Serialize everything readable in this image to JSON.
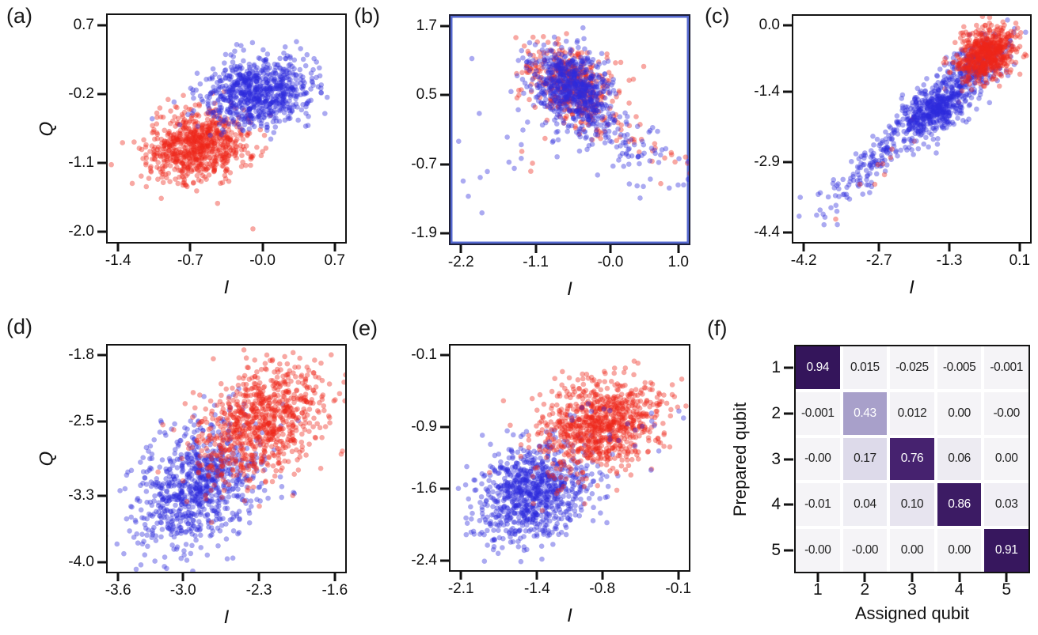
{
  "panels": {
    "a": {
      "label": "(a)",
      "ylabel": "Q",
      "xlabel": "I",
      "yticks": [
        "0.7",
        "-0.2",
        "-1.1",
        "-2.0"
      ],
      "xticks": [
        "-1.4",
        "-0.7",
        "-0.0",
        "0.7"
      ]
    },
    "b": {
      "label": "(b)",
      "xlabel": "I",
      "yticks": [
        "1.7",
        "0.5",
        "-0.7",
        "-1.9"
      ],
      "xticks": [
        "-2.2",
        "-1.1",
        "-0.0",
        "1.0"
      ]
    },
    "c": {
      "label": "(c)",
      "xlabel": "I",
      "yticks": [
        "0.0",
        "-1.4",
        "-2.9",
        "-4.4"
      ],
      "xticks": [
        "-4.2",
        "-2.7",
        "-1.3",
        "0.1"
      ]
    },
    "d": {
      "label": "(d)",
      "ylabel": "Q",
      "xlabel": "I",
      "yticks": [
        "-1.8",
        "-2.5",
        "-3.3",
        "-4.0"
      ],
      "xticks": [
        "-3.6",
        "-3.0",
        "-2.3",
        "-1.6"
      ]
    },
    "e": {
      "label": "(e)",
      "xlabel": "I",
      "yticks": [
        "-0.1",
        "-0.9",
        "-1.6",
        "-2.4"
      ],
      "xticks": [
        "-2.1",
        "-1.4",
        "-0.8",
        "-0.1"
      ]
    },
    "f": {
      "label": "(f)",
      "ylabel": "Prepared qubit",
      "xlabel": "Assigned qubit",
      "yticks": [
        "1",
        "2",
        "3",
        "4",
        "5"
      ],
      "xticks": [
        "1",
        "2",
        "3",
        "4",
        "5"
      ]
    }
  },
  "colors": {
    "point_red": "#ee2618",
    "point_blue": "#2d2bdb",
    "axis_color": "#121212",
    "panel_b_frame": "#5468cf"
  },
  "chart_data": [
    {
      "id": "a",
      "type": "scatter",
      "xlabel": "I",
      "ylabel": "Q",
      "xtick_values": [
        -1.4,
        -0.7,
        0.0,
        0.7
      ],
      "ytick_values": [
        0.7,
        -0.2,
        -1.1,
        -2.0
      ],
      "xlim": [
        -1.517,
        0.817
      ],
      "ylim": [
        -2.15,
        0.85
      ],
      "point_radius": 3.3,
      "alpha": 0.4,
      "seed": 11,
      "series": [
        {
          "name": "red-cluster",
          "color": "#ee2618",
          "n": 760,
          "cx": -0.63,
          "cy": -0.88,
          "sdx": 0.26,
          "sdy": 0.23,
          "corr": 0.12
        },
        {
          "name": "red-outlier",
          "color": "#ee2618",
          "n": 1,
          "cx": -0.08,
          "cy": -1.98,
          "sdx": 0.01,
          "sdy": 0.01,
          "corr": 0
        },
        {
          "name": "blue-cluster",
          "color": "#2d2bdb",
          "n": 760,
          "cx": -0.05,
          "cy": -0.18,
          "sdx": 0.27,
          "sdy": 0.24,
          "corr": 0.15
        }
      ]
    },
    {
      "id": "b",
      "type": "scatter",
      "xlabel": "I",
      "xtick_values": [
        -2.2,
        -1.1,
        0.0,
        1.0
      ],
      "ytick_values": [
        1.7,
        0.5,
        -0.7,
        -1.9
      ],
      "xlim": [
        -2.378,
        1.178
      ],
      "ylim": [
        -2.1,
        1.9
      ],
      "point_radius": 3.3,
      "alpha": 0.4,
      "seed": 22,
      "series": [
        {
          "name": "red-tail",
          "color": "#ee2618",
          "n": 60,
          "cx": 0.1,
          "cy": -0.15,
          "sdx": 0.6,
          "sdy": 0.42,
          "corr": -0.8
        },
        {
          "name": "blue-tail",
          "color": "#2d2bdb",
          "n": 130,
          "cx": 0.05,
          "cy": -0.25,
          "sdx": 0.62,
          "sdy": 0.45,
          "corr": -0.78
        },
        {
          "name": "blue-outliers",
          "color": "#2d2bdb",
          "n": 14,
          "cx": -1.45,
          "cy": -0.85,
          "sdx": 0.45,
          "sdy": 0.5,
          "corr": 0
        },
        {
          "name": "red-outliers",
          "color": "#ee2618",
          "n": 4,
          "cx": -1.6,
          "cy": -0.55,
          "sdx": 0.45,
          "sdy": 0.4,
          "corr": 0
        },
        {
          "name": "red-core",
          "color": "#ee2618",
          "n": 430,
          "cx": -0.6,
          "cy": 0.72,
          "sdx": 0.3,
          "sdy": 0.32,
          "corr": -0.25
        },
        {
          "name": "blue-core",
          "color": "#2d2bdb",
          "n": 640,
          "cx": -0.55,
          "cy": 0.66,
          "sdx": 0.3,
          "sdy": 0.34,
          "corr": -0.3
        }
      ]
    },
    {
      "id": "c",
      "type": "scatter",
      "xlabel": "I",
      "xtick_values": [
        -4.2,
        -2.7,
        -1.3,
        0.1
      ],
      "ytick_values": [
        0.0,
        -1.4,
        -2.9,
        -4.4
      ],
      "xlim": [
        -4.439,
        0.339
      ],
      "ylim": [
        -4.644,
        0.244
      ],
      "point_radius": 3.3,
      "alpha": 0.4,
      "seed": 33,
      "series": [
        {
          "name": "blue-tail",
          "color": "#2d2bdb",
          "n": 150,
          "cx": -2.9,
          "cy": -3.0,
          "sdx": 0.62,
          "sdy": 0.6,
          "corr": 0.93
        },
        {
          "name": "red-strays",
          "color": "#ee2618",
          "n": 14,
          "cx": -2.5,
          "cy": -2.6,
          "sdx": 0.75,
          "sdy": 0.75,
          "corr": 0.92
        },
        {
          "name": "blue-core",
          "color": "#2d2bdb",
          "n": 520,
          "cx": -1.6,
          "cy": -1.78,
          "sdx": 0.34,
          "sdy": 0.3,
          "corr": 0.5
        },
        {
          "name": "blue-upper",
          "color": "#2d2bdb",
          "n": 260,
          "cx": -0.78,
          "cy": -0.88,
          "sdx": 0.32,
          "sdy": 0.3,
          "corr": 0.45
        },
        {
          "name": "red-core",
          "color": "#ee2618",
          "n": 620,
          "cx": -0.55,
          "cy": -0.6,
          "sdx": 0.29,
          "sdy": 0.27,
          "corr": 0.25
        }
      ]
    },
    {
      "id": "d",
      "type": "scatter",
      "xlabel": "I",
      "ylabel": "Q",
      "xtick_values": [
        -3.6,
        -3.0,
        -2.3,
        -1.6
      ],
      "ytick_values": [
        -1.8,
        -2.5,
        -3.3,
        -4.0
      ],
      "xlim": [
        -3.711,
        -1.489
      ],
      "ylim": [
        -4.122,
        -1.678
      ],
      "point_radius": 3.3,
      "alpha": 0.4,
      "seed": 44,
      "series": [
        {
          "name": "blue-cluster",
          "color": "#2d2bdb",
          "n": 820,
          "cx": -2.86,
          "cy": -3.2,
          "sdx": 0.29,
          "sdy": 0.34,
          "corr": 0.35
        },
        {
          "name": "red-cluster",
          "color": "#ee2618",
          "n": 820,
          "cx": -2.28,
          "cy": -2.52,
          "sdx": 0.3,
          "sdy": 0.31,
          "corr": 0.35
        }
      ]
    },
    {
      "id": "e",
      "type": "scatter",
      "xlabel": "I",
      "xtick_values": [
        -2.1,
        -1.4,
        -0.8,
        -0.1
      ],
      "ytick_values": [
        -0.1,
        -0.9,
        -1.6,
        -2.4
      ],
      "xlim": [
        -2.211,
        0.011
      ],
      "ylim": [
        -2.528,
        0.028
      ],
      "point_radius": 3.3,
      "alpha": 0.4,
      "seed": 55,
      "series": [
        {
          "name": "blue-cluster",
          "color": "#2d2bdb",
          "n": 850,
          "cx": -1.45,
          "cy": -1.67,
          "sdx": 0.27,
          "sdy": 0.28,
          "corr": 0.3
        },
        {
          "name": "red-strays",
          "color": "#ee2618",
          "n": 6,
          "cx": -1.3,
          "cy": -1.5,
          "sdx": 0.3,
          "sdy": 0.25,
          "corr": 0
        },
        {
          "name": "red-cluster",
          "color": "#ee2618",
          "n": 850,
          "cx": -0.8,
          "cy": -0.88,
          "sdx": 0.28,
          "sdy": 0.26,
          "corr": 0.25
        },
        {
          "name": "blue-overlap",
          "color": "#2d2bdb",
          "n": 25,
          "cx": -0.8,
          "cy": -0.9,
          "sdx": 0.3,
          "sdy": 0.28,
          "corr": 0
        }
      ]
    },
    {
      "id": "f",
      "type": "heatmap",
      "xlabel": "Assigned qubit",
      "ylabel": "Prepared qubit",
      "rows": [
        "1",
        "2",
        "3",
        "4",
        "5"
      ],
      "cols": [
        "1",
        "2",
        "3",
        "4",
        "5"
      ],
      "values": [
        [
          0.94,
          0.015,
          -0.025,
          -0.005,
          -0.001
        ],
        [
          -0.001,
          0.43,
          0.012,
          0.0,
          -0.0
        ],
        [
          -0.0,
          0.17,
          0.76,
          0.06,
          0.0
        ],
        [
          -0.01,
          0.04,
          0.1,
          0.86,
          0.03
        ],
        [
          -0.0,
          -0.0,
          0.0,
          0.0,
          0.91
        ]
      ],
      "value_labels": [
        [
          "0.94",
          "0.015",
          "-0.025",
          "-0.005",
          "-0.001"
        ],
        [
          "-0.001",
          "0.43",
          "0.012",
          "0.00",
          "-0.00"
        ],
        [
          "-0.00",
          "0.17",
          "0.76",
          "0.06",
          "0.00"
        ],
        [
          "-0.01",
          "0.04",
          "0.10",
          "0.86",
          "0.03"
        ],
        [
          "-0.00",
          "-0.00",
          "0.00",
          "0.00",
          "0.91"
        ]
      ],
      "palette": [
        [
          0,
          "#f5f4f7"
        ],
        [
          0.18,
          "#dcd8e9"
        ],
        [
          0.45,
          "#a49bc8"
        ],
        [
          0.75,
          "#472370"
        ],
        [
          1,
          "#2e1154"
        ]
      ],
      "text_light": "#ffffff",
      "text_dark": "#222222",
      "light_text_threshold": 0.4
    }
  ]
}
